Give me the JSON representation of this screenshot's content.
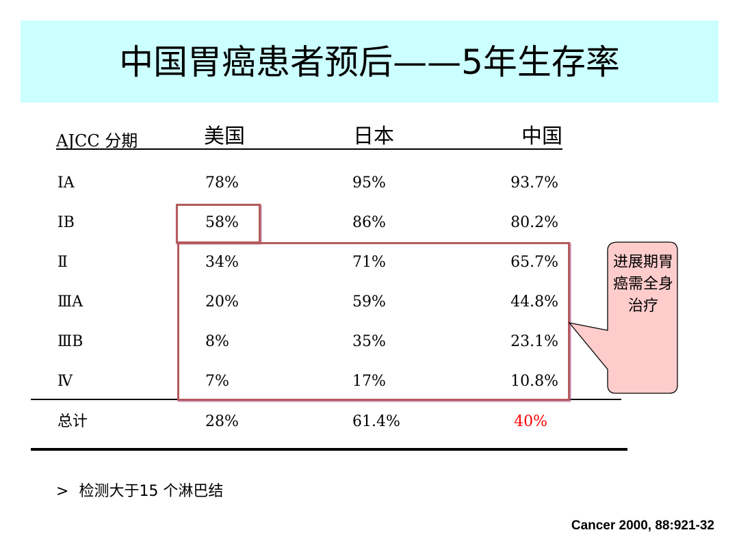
{
  "title": "中国胃癌患者预后——5年生存率",
  "table": {
    "headers": [
      "AJCC 分期",
      "美国",
      "日本",
      "中国"
    ],
    "rows": [
      {
        "stage": "ⅠA",
        "us": "78%",
        "jp": "95%",
        "cn": "93.7%"
      },
      {
        "stage": "ⅠB",
        "us": "58%",
        "jp": "86%",
        "cn": "80.2%"
      },
      {
        "stage": "Ⅱ",
        "us": "34%",
        "jp": "71%",
        "cn": "65.7%"
      },
      {
        "stage": "ⅢA",
        "us": "20%",
        "jp": "59%",
        "cn": "44.8%"
      },
      {
        "stage": "ⅢB",
        "us": "8%",
        "jp": "35%",
        "cn": "23.1%"
      },
      {
        "stage": "Ⅳ",
        "us": "7%",
        "jp": "17%",
        "cn": "10.8%"
      }
    ],
    "total": {
      "stage": "总计",
      "us": "28%",
      "jp": "61.4%",
      "cn": "40%"
    }
  },
  "callout": "进展期胃癌需全身治疗",
  "note": {
    "bullet": ">",
    "text": "检测大于15 个淋巴结"
  },
  "citation": "Cancer 2000, 88:921-32",
  "colors": {
    "band": "#ccffff",
    "highlight_red": "#ff0000",
    "box": "#b55a5e",
    "callout_fill": "#ffcccc"
  }
}
